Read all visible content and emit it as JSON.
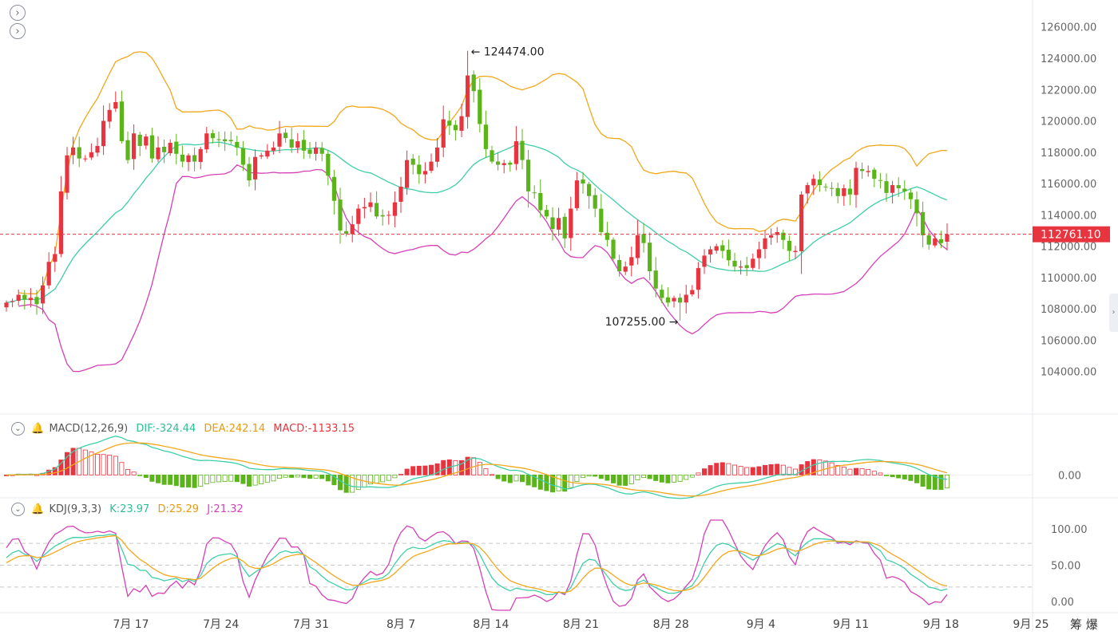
{
  "colors": {
    "up": "#e8343e",
    "down": "#5bb41a",
    "ma": "#3ecfa8",
    "upper": "#f3a71b",
    "lower": "#d63fb8",
    "dif": "#3ecfa8",
    "dea": "#f3a71b",
    "kdj_k": "#3ecfa8",
    "kdj_d": "#f3a71b",
    "kdj_j": "#d63fb8",
    "last_price_bg": "#e8343e"
  },
  "icons": [
    "chevron-right-icon",
    "chevron-right-icon",
    "chevron-down-icon",
    "bell-icon"
  ],
  "header_icons": [
    "chevron-right-icon",
    "chevron-right-icon"
  ],
  "footer": {
    "text": "筹 爆"
  },
  "chart_data": [
    {
      "type": "candlestick",
      "title": "",
      "x_labels": [
        "7月 17",
        "7月 24",
        "7月 31",
        "8月 7",
        "8月 14",
        "8月 21",
        "8月 28",
        "9月 4",
        "9月 11",
        "9月 18",
        "9月 25"
      ],
      "y_ticks": [
        "126000.00",
        "124000.00",
        "122000.00",
        "120000.00",
        "118000.00",
        "116000.00",
        "114000.00",
        "112000.00",
        "110000.00",
        "108000.00",
        "106000.00",
        "104000.00"
      ],
      "ylim": [
        102000,
        126800
      ],
      "last_price": "112761.10",
      "last_price_value": 112761.1,
      "annotations": [
        {
          "text": "← 124474.00",
          "value": 124474,
          "index": 76
        },
        {
          "text": "107255.00 →",
          "value": 107255,
          "index": 111
        }
      ],
      "close": [
        108400,
        108500,
        108900,
        108600,
        108700,
        108300,
        109500,
        111000,
        111500,
        115500,
        117800,
        118300,
        117600,
        117600,
        118000,
        118400,
        120000,
        120700,
        121200,
        118700,
        117500,
        119200,
        118400,
        119000,
        117600,
        118300,
        118000,
        118600,
        117900,
        117400,
        117800,
        117400,
        118200,
        119200,
        118900,
        118800,
        118700,
        118700,
        118300,
        117200,
        116200,
        117700,
        117800,
        118100,
        118300,
        119200,
        118900,
        118300,
        118700,
        118100,
        117900,
        118300,
        117900,
        116500,
        114900,
        113000,
        112800,
        113400,
        114400,
        114500,
        114800,
        113900,
        113900,
        114000,
        114800,
        115800,
        117500,
        117200,
        116600,
        116800,
        117400,
        118300,
        120100,
        119700,
        119400,
        120300,
        122900,
        121900,
        119800,
        118200,
        117400,
        117200,
        117300,
        117200,
        118700,
        117500,
        115500,
        115400,
        114300,
        113900,
        113100,
        113800,
        112500,
        114400,
        116200,
        116000,
        115200,
        114400,
        112900,
        112400,
        111200,
        110400,
        110700,
        111300,
        112700,
        112200,
        110400,
        109300,
        108700,
        108400,
        108700,
        108400,
        108900,
        109200,
        110600,
        111400,
        111800,
        112000,
        111700,
        111100,
        110700,
        110700,
        110600,
        111200,
        111800,
        112500,
        112700,
        112900,
        112400,
        111700,
        111700,
        115300,
        115900,
        116300,
        115900,
        115800,
        115700,
        115200,
        115700,
        115300,
        117000,
        116800,
        116800,
        116300,
        116200,
        115400,
        115900,
        115700,
        115500,
        115000,
        114100,
        112700,
        112100,
        112500,
        112200,
        112761
      ]
    },
    {
      "type": "line",
      "title": "MACD(12,26,9)",
      "series": [
        {
          "name": "DIF:-324.44"
        },
        {
          "name": "DEA:242.14"
        },
        {
          "name": "MACD:-1133.15"
        }
      ],
      "y_ticks": [
        "0.00"
      ],
      "ylim": [
        -1700,
        2900
      ]
    },
    {
      "type": "line",
      "title": "KDJ(9,3,3)",
      "series": [
        {
          "name": "K:23.97"
        },
        {
          "name": "D:25.29"
        },
        {
          "name": "J:21.32"
        }
      ],
      "y_ticks": [
        "100.00",
        "50.00",
        "0.00"
      ],
      "ylim": [
        -12,
        112
      ],
      "guides": [
        80,
        50,
        20
      ]
    }
  ]
}
